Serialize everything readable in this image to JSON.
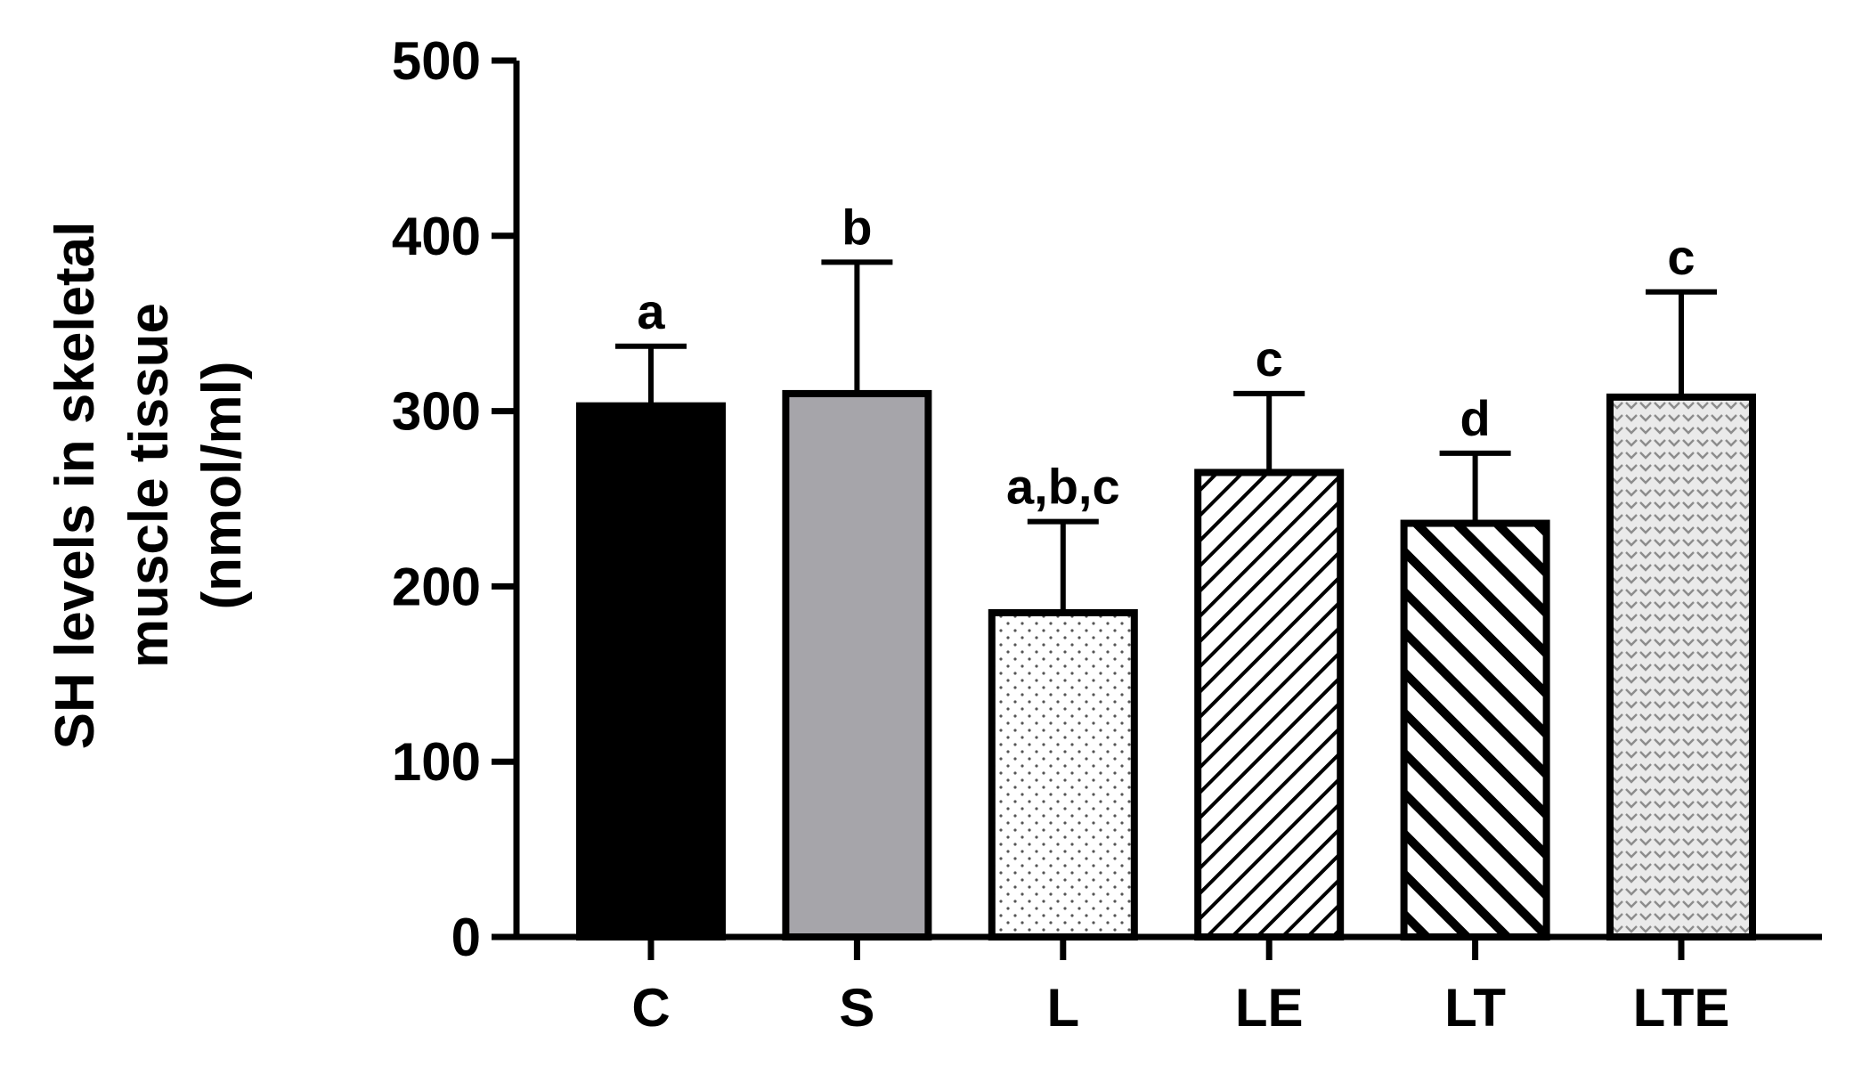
{
  "chart_data": {
    "type": "bar",
    "title": "",
    "xlabel": "",
    "ylabel": [
      "SH levels in skeletal",
      "muscle tissue",
      "(nmol/ml)"
    ],
    "ylim": [
      0,
      500
    ],
    "yticks": [
      0,
      100,
      200,
      300,
      400,
      500
    ],
    "grid": false,
    "legend": "none",
    "categories": [
      "C",
      "S",
      "L",
      "LE",
      "LT",
      "LTE"
    ],
    "values": [
      303,
      310,
      185,
      265,
      236,
      308
    ],
    "errors": [
      34,
      75,
      52,
      45,
      40,
      60
    ],
    "annotations": [
      "a",
      "b",
      "a,b,c",
      "c",
      "d",
      "c"
    ],
    "fills": [
      {
        "category": "C",
        "pattern": "solid",
        "color": "#000000"
      },
      {
        "category": "S",
        "pattern": "solid",
        "color": "#a6a5aa"
      },
      {
        "category": "L",
        "pattern": "dots",
        "color": "#ffffff"
      },
      {
        "category": "LE",
        "pattern": "fine-diagonal-hatch",
        "color": "#ffffff"
      },
      {
        "category": "LT",
        "pattern": "bold-reverse-diagonal-hatch",
        "color": "#ffffff"
      },
      {
        "category": "LTE",
        "pattern": "chevron-texture",
        "color": "#e8e8e8"
      }
    ]
  }
}
